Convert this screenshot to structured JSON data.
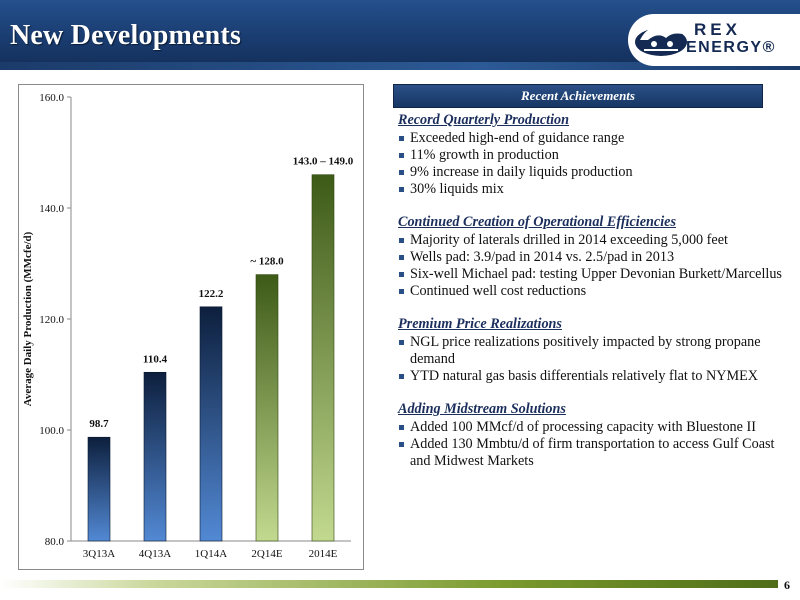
{
  "slide": {
    "title": "New Developments",
    "page_number": "6",
    "logo": {
      "line1": "REX",
      "line2": "ENERGY®"
    }
  },
  "achievements": {
    "header": "Recent Achievements",
    "sections": [
      {
        "title": "Record Quarterly Production",
        "bullets": [
          "Exceeded high-end of guidance range",
          "11% growth in production",
          "9% increase in daily liquids production",
          "30% liquids mix"
        ]
      },
      {
        "title": "Continued Creation of Operational Efficiencies",
        "bullets": [
          "Majority of laterals drilled in 2014 exceeding 5,000 feet",
          "Wells pad: 3.9/pad in 2014 vs. 2.5/pad in 2013",
          "Six-well Michael pad: testing Upper Devonian Burkett/Marcellus",
          "Continued well cost reductions"
        ]
      },
      {
        "title": "Premium Price Realizations",
        "bullets": [
          "NGL price realizations positively impacted by strong propane demand",
          "YTD natural gas basis differentials relatively flat to NYMEX"
        ]
      },
      {
        "title": "Adding Midstream Solutions",
        "bullets": [
          "Added 100 MMcf/d of processing capacity with Bluestone II",
          "Added 130 Mmbtu/d of firm transportation to access Gulf Coast and Midwest Markets"
        ]
      }
    ]
  },
  "chart_data": {
    "type": "bar",
    "categories": [
      "3Q13A",
      "4Q13A",
      "1Q14A",
      "2Q14E",
      "2014E"
    ],
    "values": [
      98.7,
      110.4,
      122.2,
      128.0,
      146.0
    ],
    "data_labels": [
      "98.7",
      "110.4",
      "122.2",
      "~ 128.0",
      "143.0 – 149.0"
    ],
    "bar_styles": [
      "actual",
      "actual",
      "actual",
      "estimate",
      "estimate"
    ],
    "ylabel": "Average Daily Production (MMcfe/d)",
    "xlabel": "",
    "ylim": [
      80,
      160
    ],
    "yticks": [
      "80.0",
      "100.0",
      "120.0",
      "140.0",
      "160.0"
    ],
    "colors": {
      "actual_top": "#0d1f3d",
      "actual_bottom": "#5289d4",
      "estimate_top": "#3d5a17",
      "estimate_bottom": "#c2d98f",
      "axis": "#8a8a8a"
    }
  }
}
